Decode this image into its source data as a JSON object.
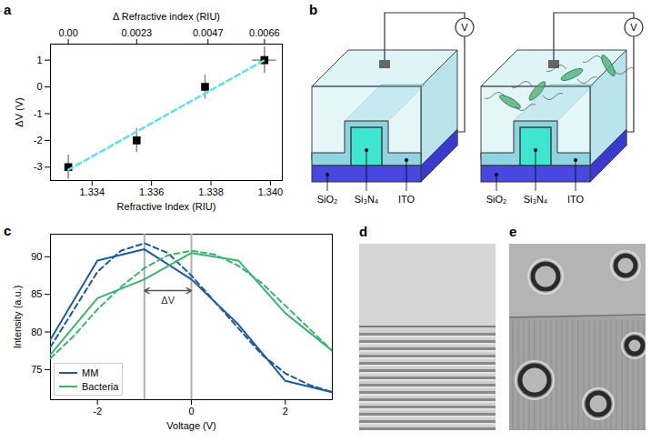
{
  "chart_data": [
    {
      "panel": "a",
      "type": "scatter",
      "x_label": "Refractive Index (RIU)",
      "y_label": "ΔV (V)",
      "x2_label": "Δ Refractive index (RIU)",
      "xlim": [
        1.3326,
        1.3404
      ],
      "xticks": [
        1.334,
        1.336,
        1.338,
        {
          "value": 1.34,
          "label": "1.340"
        }
      ],
      "x2lim": [
        -0.0006,
        0.0072
      ],
      "x2ticks": [
        {
          "value": 0,
          "label": "0.00"
        },
        0.0023,
        0.0047,
        0.0066
      ],
      "ylim": [
        -3.5,
        1.6
      ],
      "yticks": [
        -3,
        -2,
        -1,
        0,
        1
      ],
      "series": [
        {
          "type": "scatter",
          "color": "#000000",
          "marker": "square",
          "x": [
            1.3332,
            1.3355,
            1.3378,
            1.3398
          ],
          "values": [
            -3,
            -2,
            0,
            1
          ],
          "y_error": [
            0.45,
            0.45,
            0.45,
            0.5
          ],
          "x_error": [
            0,
            0,
            0,
            0.0004
          ]
        },
        {
          "type": "line",
          "color": "#5ce1e6",
          "line_style": "dashed",
          "x": [
            1.3332,
            1.3398
          ],
          "values": [
            -3.1,
            1.0
          ]
        }
      ]
    },
    {
      "panel": "c",
      "type": "line",
      "x_label": "Voltage (V)",
      "y_label": "Intensity (a.u.)",
      "xlim": [
        -3,
        3
      ],
      "xticks": [
        -2,
        0,
        2
      ],
      "ylim": [
        71,
        93
      ],
      "yticks": [
        75,
        80,
        85,
        90
      ],
      "legend": "lower left",
      "series": [
        {
          "name": "MM",
          "color": "#1f5a9e",
          "line_style": "solid",
          "x": [
            -3,
            -2,
            -1,
            0,
            1,
            2,
            3
          ],
          "values": [
            79,
            89.5,
            91,
            87,
            81,
            73.5,
            72
          ]
        },
        {
          "color": "#1f5a9e",
          "line_style": "dashed",
          "x": [
            -3,
            -2.5,
            -2,
            -1.5,
            -1,
            -0.5,
            0,
            0.5,
            1,
            1.5,
            2,
            2.5,
            3
          ],
          "values": [
            78,
            83,
            88,
            90.8,
            91.8,
            90.5,
            87.5,
            84,
            80.5,
            77,
            74.5,
            73,
            72
          ]
        },
        {
          "name": "Bacteria",
          "color": "#3cb371",
          "line_style": "solid",
          "x": [
            -3,
            -2,
            -1,
            0,
            1,
            2,
            3
          ],
          "values": [
            77,
            84.5,
            87,
            90.5,
            89.5,
            82.5,
            77.5
          ]
        },
        {
          "color": "#3cb371",
          "line_style": "dashed",
          "x": [
            -3,
            -2.5,
            -2,
            -1.5,
            -1,
            -0.5,
            0,
            0.5,
            1,
            1.5,
            2,
            2.5,
            3
          ],
          "values": [
            76.5,
            79.5,
            83,
            86,
            88.5,
            90.2,
            90.8,
            90.3,
            88.8,
            86.5,
            83.5,
            80.5,
            77.5
          ]
        }
      ],
      "vlines": [
        -1,
        0
      ],
      "annotation": {
        "text": "ΔV",
        "x": [
          -1,
          0
        ],
        "y": 85.5
      }
    }
  ],
  "diagram": {
    "panel": "b",
    "labels": {
      "substrate": "SiO₂",
      "core": "Si₃N₄",
      "electrode": "ITO",
      "meter": "V"
    }
  },
  "images": [
    {
      "panel": "d"
    },
    {
      "panel": "e"
    }
  ]
}
